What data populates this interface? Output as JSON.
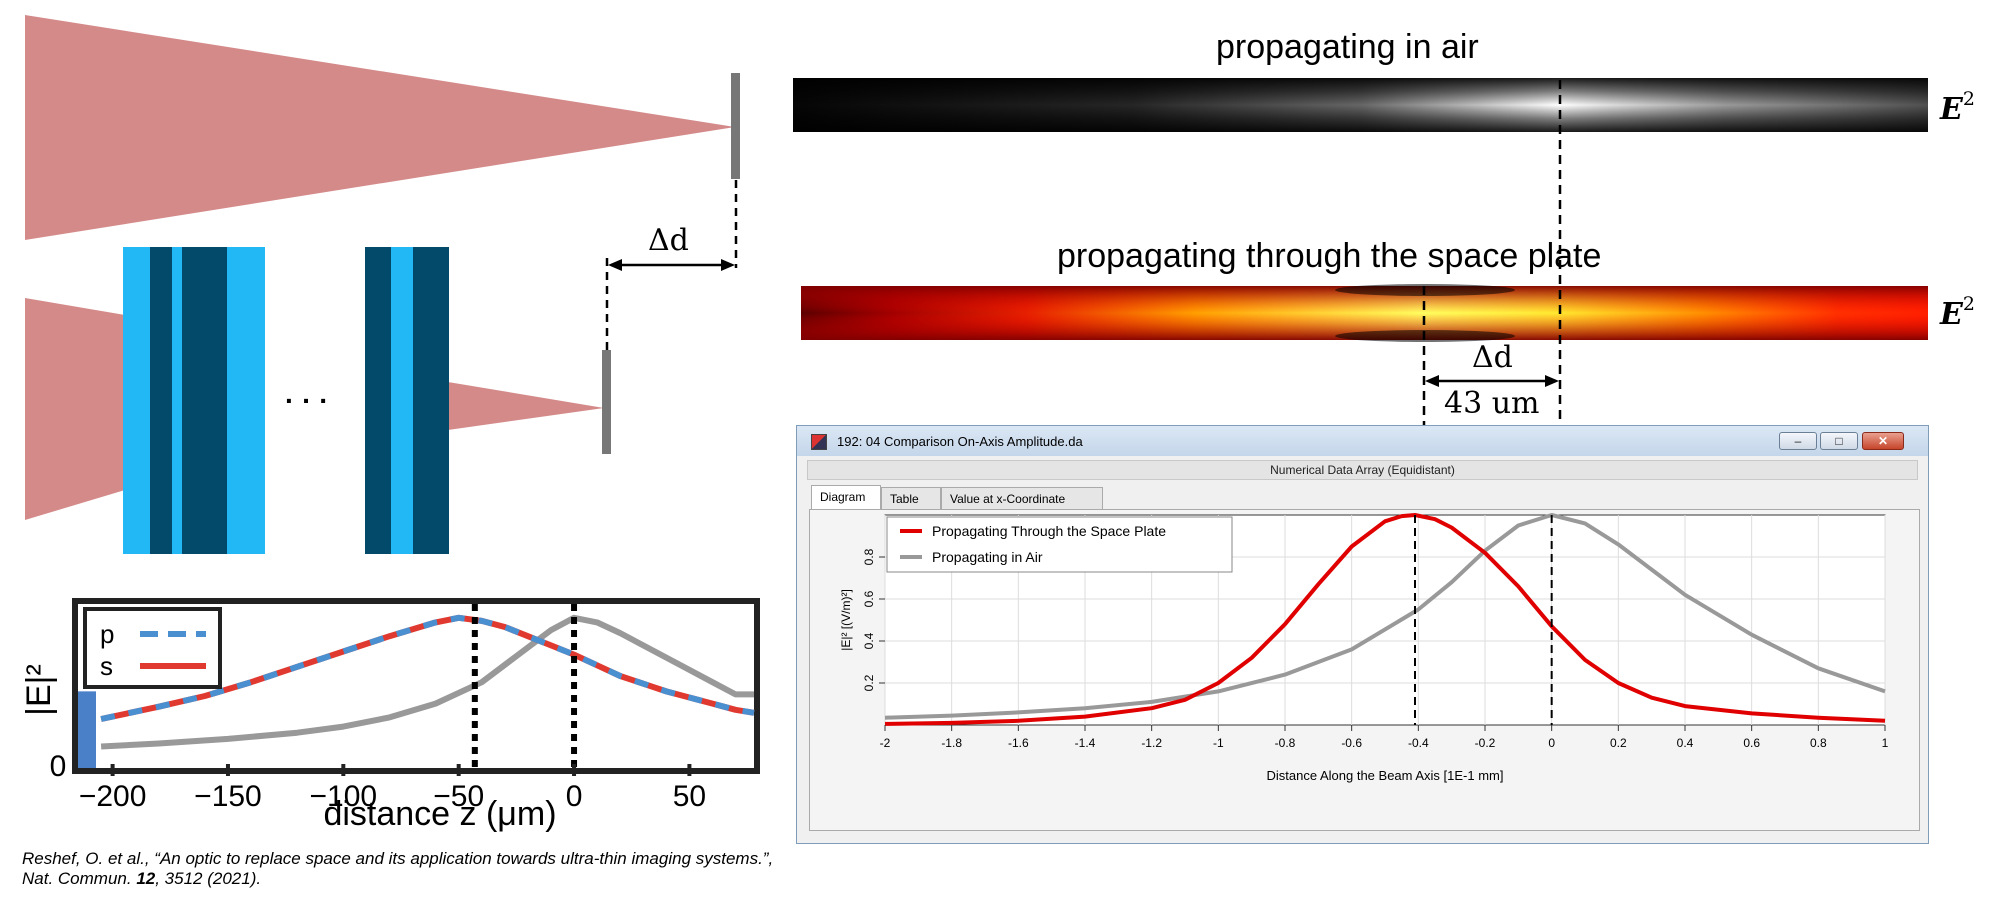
{
  "headings": {
    "air": "propagating in air",
    "plate": "propagating through the space plate"
  },
  "field_label": {
    "base": "E",
    "exponent": "2"
  },
  "delta_labels": {
    "top": "Δd",
    "right": "Δd",
    "distance": "43 um"
  },
  "figure_dots": "· · ·",
  "caption": {
    "part1": "Reshef, O. et al., “An optic to replace space and its application towards ultra-thin imaging systems.”, Nat. Commun. ",
    "bold": "12",
    "part2": ", 3512 (2021)."
  },
  "colors": {
    "beam": "#d58a8a",
    "screen": "#777777",
    "layer_light": "#22b8f5",
    "layer_dark": "#034a6a",
    "red": "#e00000",
    "gray": "#999999",
    "p_blue": "#4a90d0",
    "s_red": "#e03a30"
  },
  "inset_chart": {
    "type": "line",
    "ylabel": "|E|²",
    "xlabel": "distance z (μm)",
    "xlim": [
      -215,
      78
    ],
    "ylim": [
      0,
      1.07
    ],
    "xticks": [
      "−200",
      "−150",
      "−100",
      "−50",
      "0",
      "50"
    ],
    "xtick_values": [
      -200,
      -150,
      -100,
      -50,
      0,
      50
    ],
    "yticks": [
      "0"
    ],
    "vlines": [
      -43,
      0
    ],
    "legend": [
      {
        "name": "p",
        "style": "dashed",
        "color": "#4a90d0"
      },
      {
        "name": "s",
        "style": "solid",
        "color": "#e03a30"
      }
    ],
    "series": {
      "space_plate": {
        "x": [
          -205,
          -180,
          -160,
          -140,
          -120,
          -100,
          -80,
          -60,
          -50,
          -40,
          -30,
          -20,
          -10,
          0,
          10,
          20,
          30,
          40,
          50,
          60,
          70,
          78
        ],
        "y": [
          0.32,
          0.4,
          0.47,
          0.56,
          0.66,
          0.76,
          0.86,
          0.95,
          0.98,
          0.96,
          0.92,
          0.86,
          0.8,
          0.74,
          0.67,
          0.6,
          0.55,
          0.5,
          0.46,
          0.42,
          0.38,
          0.36
        ]
      },
      "air": {
        "x": [
          -205,
          -180,
          -150,
          -120,
          -100,
          -80,
          -60,
          -40,
          -25,
          -10,
          0,
          10,
          20,
          35,
          50,
          60,
          70,
          78
        ],
        "y": [
          0.14,
          0.16,
          0.19,
          0.23,
          0.27,
          0.33,
          0.42,
          0.56,
          0.73,
          0.9,
          0.98,
          0.95,
          0.88,
          0.76,
          0.64,
          0.56,
          0.48,
          0.48
        ]
      }
    }
  },
  "window": {
    "title": "192: 04 Comparison On-Axis Amplitude.da",
    "subtitle": "Numerical Data Array (Equidistant)",
    "minimize_glyph": "–",
    "maximize_glyph": "□",
    "close_glyph": "✕",
    "tabs": [
      "Diagram",
      "Table",
      "Value at x-Coordinate"
    ]
  },
  "chart_data": {
    "type": "line",
    "xlabel": "Distance Along the Beam Axis [1E-1 mm]",
    "ylabel": "|E|² [(V/m)²]",
    "xlim": [
      -2,
      1
    ],
    "ylim": [
      0,
      1
    ],
    "grid": true,
    "legend_position": "top-left",
    "xticks": [
      "-2",
      "-1.8",
      "-1.6",
      "-1.4",
      "-1.2",
      "-1",
      "-0.8",
      "-0.6",
      "-0.4",
      "-0.2",
      "0",
      "0.2",
      "0.4",
      "0.6",
      "0.8",
      "1"
    ],
    "xtick_values": [
      -2,
      -1.8,
      -1.6,
      -1.4,
      -1.2,
      -1,
      -0.8,
      -0.6,
      -0.4,
      -0.2,
      0,
      0.2,
      0.4,
      0.6,
      0.8,
      1
    ],
    "yticks": [
      "0.2",
      "0.4",
      "0.6",
      "0.8"
    ],
    "ytick_values": [
      0.2,
      0.4,
      0.6,
      0.8
    ],
    "vlines": [
      -0.41,
      0
    ],
    "series": [
      {
        "name": "Propagating Through the Space Plate",
        "color": "#e00000",
        "x": [
          -2,
          -1.8,
          -1.6,
          -1.4,
          -1.2,
          -1.1,
          -1.0,
          -0.9,
          -0.8,
          -0.7,
          -0.6,
          -0.5,
          -0.45,
          -0.41,
          -0.35,
          -0.3,
          -0.2,
          -0.1,
          0,
          0.1,
          0.2,
          0.3,
          0.4,
          0.6,
          0.8,
          1.0
        ],
        "y": [
          0.005,
          0.01,
          0.02,
          0.04,
          0.08,
          0.12,
          0.2,
          0.32,
          0.48,
          0.67,
          0.85,
          0.97,
          0.995,
          1.0,
          0.98,
          0.94,
          0.82,
          0.66,
          0.47,
          0.31,
          0.2,
          0.13,
          0.09,
          0.055,
          0.035,
          0.02
        ]
      },
      {
        "name": "Propagating in Air",
        "color": "#999999",
        "x": [
          -2,
          -1.8,
          -1.6,
          -1.4,
          -1.2,
          -1.0,
          -0.8,
          -0.6,
          -0.4,
          -0.3,
          -0.2,
          -0.1,
          0,
          0.1,
          0.2,
          0.3,
          0.4,
          0.6,
          0.8,
          1.0
        ],
        "y": [
          0.035,
          0.045,
          0.06,
          0.08,
          0.11,
          0.16,
          0.24,
          0.36,
          0.55,
          0.68,
          0.83,
          0.95,
          1.0,
          0.96,
          0.86,
          0.74,
          0.62,
          0.43,
          0.27,
          0.16
        ]
      }
    ]
  }
}
